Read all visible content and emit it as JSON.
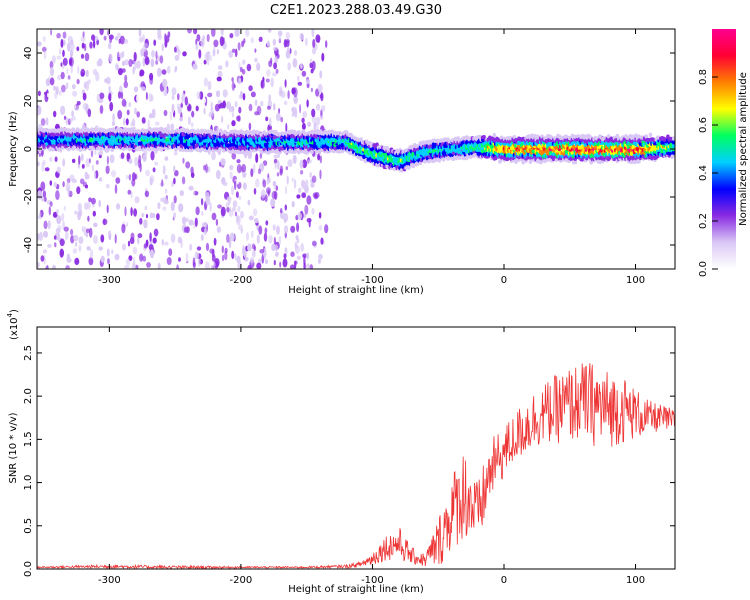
{
  "figure": {
    "title": "C2E1.2023.288.03.49.G30"
  },
  "chart_data": [
    {
      "type": "heatmap",
      "xlabel": "Height of straight line (km)",
      "ylabel": "Frequency (Hz)",
      "xlim": [
        -355,
        130
      ],
      "ylim": [
        -50,
        50
      ],
      "xticks": [
        -300,
        -200,
        -100,
        0,
        100
      ],
      "yticks": [
        -40,
        -20,
        0,
        20,
        40
      ],
      "grid": false,
      "colorbar": {
        "label": "Normalized spectral amplitude",
        "range": [
          0.0,
          1.0
        ],
        "ticks": [
          0.0,
          0.2,
          0.4,
          0.6,
          0.8
        ],
        "colors": [
          "#ffffff",
          "#d9c8f5",
          "#8a2be2",
          "#0000ff",
          "#00cfff",
          "#00ff60",
          "#ffff00",
          "#ff8000",
          "#ff0033",
          "#ff0090"
        ]
      },
      "ridge": {
        "x": [
          -350,
          -300,
          -250,
          -200,
          -150,
          -120,
          -100,
          -80,
          -60,
          -40,
          -20,
          0,
          50,
          100,
          130
        ],
        "frequency": [
          4,
          4,
          4,
          3,
          3,
          3,
          -2,
          -5,
          -1,
          0,
          1,
          0,
          0,
          0,
          1
        ],
        "amplitude": [
          0.45,
          0.5,
          0.5,
          0.45,
          0.5,
          0.55,
          0.6,
          0.6,
          0.5,
          0.5,
          0.6,
          0.85,
          0.9,
          0.9,
          0.6
        ]
      },
      "noise_region_end_x": -135
    },
    {
      "type": "line",
      "xlabel": "Height of straight line (km)",
      "ylabel": "SNR (10 * v/v)",
      "y_multiplier": "(x10",
      "y_multiplier_exp": "4",
      "y_multiplier_close": ")",
      "xlim": [
        -355,
        130
      ],
      "ylim": [
        0,
        2.8
      ],
      "xticks": [
        -300,
        -200,
        -100,
        0,
        100
      ],
      "yticks": [
        0.0,
        0.5,
        1.0,
        1.5,
        2.0,
        2.5
      ],
      "color": "#ee3333",
      "series": [
        {
          "x": [
            -355,
            -300,
            -250,
            -200,
            -150,
            -120,
            -110,
            -100,
            -90,
            -80,
            -70,
            -60,
            -50,
            -40,
            -30,
            -20,
            -10,
            0,
            10,
            20,
            30,
            40,
            50,
            60,
            70,
            80,
            90,
            100,
            110,
            120,
            130
          ],
          "y": [
            0.02,
            0.03,
            0.02,
            0.02,
            0.02,
            0.03,
            0.05,
            0.12,
            0.25,
            0.3,
            0.15,
            0.1,
            0.3,
            0.65,
            0.9,
            0.6,
            1.15,
            1.35,
            1.55,
            1.7,
            1.8,
            1.85,
            1.9,
            1.95,
            1.9,
            1.85,
            1.85,
            1.8,
            1.75,
            1.75,
            1.7
          ],
          "spread": [
            0.01,
            0.02,
            0.02,
            0.01,
            0.01,
            0.02,
            0.03,
            0.08,
            0.15,
            0.2,
            0.1,
            0.08,
            0.3,
            0.45,
            0.55,
            0.4,
            0.35,
            0.3,
            0.3,
            0.35,
            0.35,
            0.4,
            0.45,
            0.45,
            0.5,
            0.45,
            0.4,
            0.3,
            0.2,
            0.15,
            0.15
          ]
        }
      ]
    }
  ]
}
